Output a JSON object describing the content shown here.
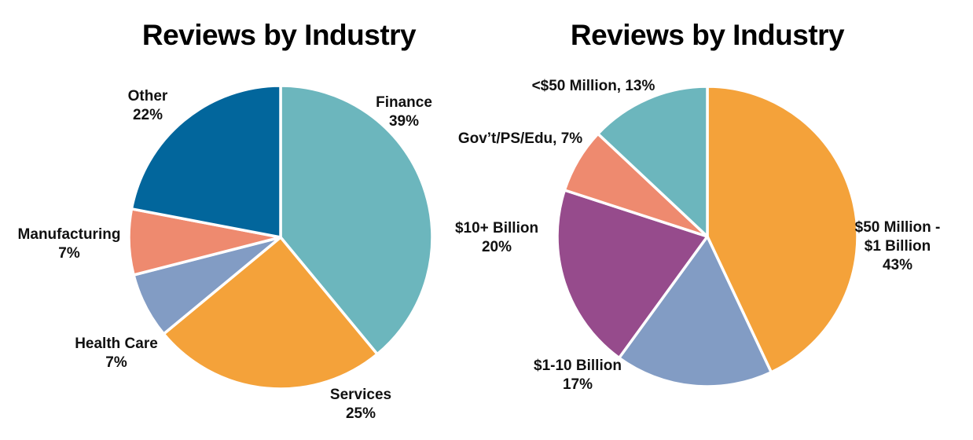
{
  "chart_data": [
    {
      "type": "pie",
      "title": "Reviews by Industry",
      "slices": [
        {
          "label": "Finance",
          "value": 39,
          "pct_text": "39%",
          "color": "#6cb6bd"
        },
        {
          "label": "Services",
          "value": 25,
          "pct_text": "25%",
          "color": "#f4a23a"
        },
        {
          "label": "Health Care",
          "value": 7,
          "pct_text": "7%",
          "color": "#829cc4"
        },
        {
          "label": "Manufacturing",
          "value": 7,
          "pct_text": "7%",
          "color": "#ee8a6f"
        },
        {
          "label": "Other",
          "value": 22,
          "pct_text": "22%",
          "color": "#02669c"
        }
      ]
    },
    {
      "type": "pie",
      "title": "Reviews by Industry",
      "slices": [
        {
          "label": "$50 Million - $1 Billion",
          "label_lines": [
            "$50 Million -",
            "$1 Billion",
            "43%"
          ],
          "value": 43,
          "pct_text": "43%",
          "color": "#f4a23a"
        },
        {
          "label": "$1-10 Billion",
          "label_lines": [
            "$1-10 Billion",
            "17%"
          ],
          "value": 17,
          "pct_text": "17%",
          "color": "#829cc4"
        },
        {
          "label": "$10+ Billion",
          "label_lines": [
            "$10+ Billion",
            "20%"
          ],
          "value": 20,
          "pct_text": "20%",
          "color": "#964b8c"
        },
        {
          "label": "Gov't/PS/Edu",
          "label_lines": [
            "Gov’t/PS/Edu, 7%"
          ],
          "value": 7,
          "pct_text": "7%",
          "color": "#ee8a6f"
        },
        {
          "label": "<$50 Million",
          "label_lines": [
            "<$50 Million, 13%"
          ],
          "value": 13,
          "pct_text": "13%",
          "color": "#6cb6bd"
        }
      ]
    }
  ]
}
